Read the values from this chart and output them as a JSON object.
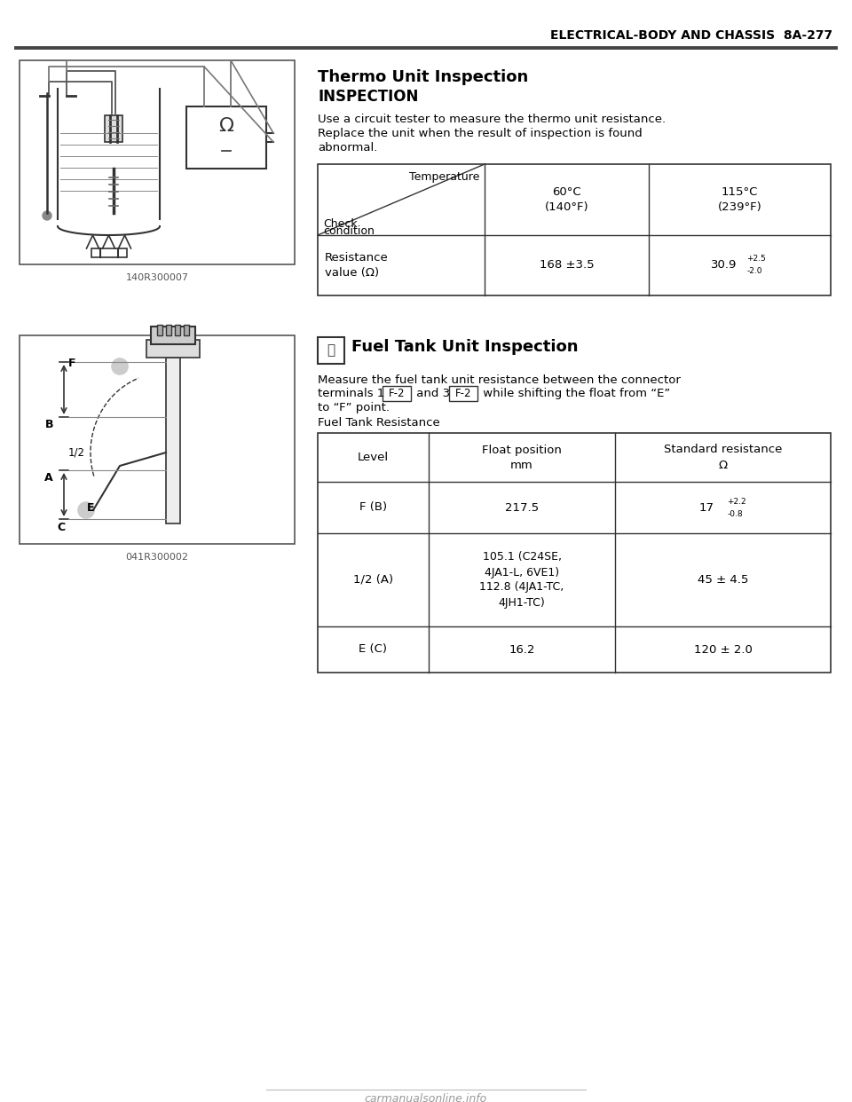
{
  "page_header": "ELECTRICAL-BODY AND CHASSIS  8A-277",
  "section1_title": "Thermo Unit Inspection",
  "section1_subtitle": "INSPECTION",
  "section1_body_line1": "Use a circuit tester to measure the thermo unit resistance.",
  "section1_body_line2": "Replace the unit when the result of inspection is found",
  "section1_body_line3": "abnormal.",
  "section1_image_label": "140R300007",
  "thermo_diag_top": "Temperature",
  "thermo_diag_bot1": "Check",
  "thermo_diag_bot2": "condition",
  "thermo_col1_hdr": "60°C\n(140°F)",
  "thermo_col2_hdr": "115°C\n(239°F)",
  "thermo_row_label1": "Resistance",
  "thermo_row_label2": "value (Ω)",
  "thermo_val1": "168 ±3.5",
  "thermo_val2_main": "30.9",
  "thermo_val2_plus": "+2.5",
  "thermo_val2_minus": "-2.0",
  "section2_title": "Fuel Tank Unit Inspection",
  "section2_image_label": "041R300002",
  "section2_body1": "Measure the fuel tank unit resistance between the connector",
  "section2_body2a": "terminals 1 ",
  "section2_f2box1": "F-2",
  "section2_body2b": " and 3 ",
  "section2_f2box2": "F-2",
  "section2_body2c": " while shifting the float from “E”",
  "section2_body3": "to “F” point.",
  "fuel_table_title": "Fuel Tank Resistance",
  "fuel_hdr0": "Level",
  "fuel_hdr1": "Float position\nmm",
  "fuel_hdr2": "Standard resistance\nΩ",
  "fuel_r0_c0": "F (B)",
  "fuel_r0_c1": "217.5",
  "fuel_r0_c2_main": "17",
  "fuel_r0_c2_plus": "+2.2",
  "fuel_r0_c2_minus": "-0.8",
  "fuel_r1_c0": "1/2 (A)",
  "fuel_r1_c1": "105.1 (C24SE,\n4JA1-L, 6VE1)\n112.8 (4JA1-TC,\n4JH1-TC)",
  "fuel_r1_c2": "45 ± 4.5",
  "fuel_r2_c0": "E (C)",
  "fuel_r2_c1": "16.2",
  "fuel_r2_c2": "120 ± 2.0",
  "footer_text": "carmanualsonline.info",
  "bg_color": "#ffffff",
  "text_color": "#000000",
  "line_color": "#333333",
  "header_line_color": "#555555"
}
